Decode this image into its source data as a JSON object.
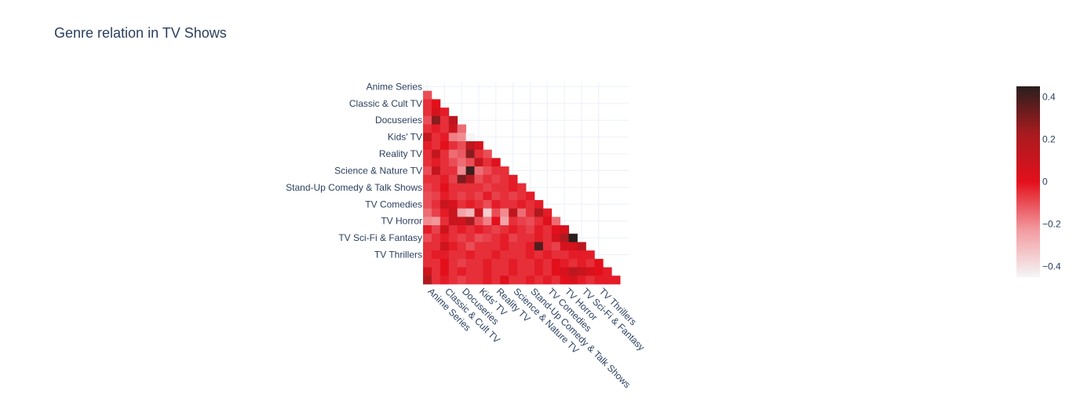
{
  "chart_data": {
    "type": "heatmap",
    "title": "Genre relation in TV Shows",
    "colorscale": [
      "#f5f5f5",
      "#f29a9f",
      "#e3101c",
      "#a81b1f",
      "#2a1e1e"
    ],
    "zrange": [
      -0.45,
      0.45
    ],
    "colorbar_ticks": [
      0.4,
      0.2,
      0,
      -0.2,
      -0.4
    ],
    "colorbar_tick_labels": [
      "0.4",
      "0.2",
      "0",
      "−0.2",
      "−0.4"
    ],
    "y_tick_labels": [
      "Anime Series",
      "Classic & Cult TV",
      "Docuseries",
      "Kids' TV",
      "Reality TV",
      "Science & Nature TV",
      "Stand-Up Comedy & Talk Shows",
      "TV Comedies",
      "TV Horror",
      "TV Sci-Fi & Fantasy",
      "TV Thrillers"
    ],
    "x_tick_labels": [
      "Anime Series",
      "Classic & Cult TV",
      "Docuseries",
      "Kids' TV",
      "Reality TV",
      "Science & Nature TV",
      "Stand-Up Comedy & Talk Shows",
      "TV Comedies",
      "TV Horror",
      "TV Sci-Fi & Fantasy",
      "TV Thrillers"
    ],
    "rows": [
      {
        "values": [
          -0.1
        ]
      },
      {
        "values": [
          -0.05,
          0.0
        ]
      },
      {
        "values": [
          -0.05,
          0.05,
          -0.02
        ]
      },
      {
        "values": [
          -0.1,
          0.28,
          -0.05,
          0.15
        ]
      },
      {
        "values": [
          -0.05,
          -0.02,
          -0.05,
          0.1,
          -0.15
        ]
      },
      {
        "values": [
          0.12,
          -0.05,
          -0.02,
          -0.18,
          -0.2,
          -0.45
        ]
      },
      {
        "values": [
          -0.02,
          -0.05,
          0.0,
          -0.05,
          -0.1,
          0.15,
          0.05
        ]
      },
      {
        "values": [
          -0.05,
          0.12,
          -0.05,
          -0.15,
          -0.12,
          0.28,
          -0.05,
          -0.1
        ]
      },
      {
        "values": [
          -0.05,
          -0.02,
          -0.05,
          -0.1,
          -0.15,
          -0.1,
          0.12,
          -0.05,
          0.02
        ]
      },
      {
        "values": [
          -0.1,
          0.12,
          -0.05,
          -0.05,
          -0.2,
          0.42,
          -0.15,
          -0.1,
          -0.05,
          -0.05
        ]
      },
      {
        "values": [
          -0.05,
          -0.05,
          -0.02,
          -0.08,
          0.3,
          0.18,
          -0.1,
          -0.05,
          -0.08,
          -0.05,
          -0.02
        ]
      },
      {
        "values": [
          -0.08,
          -0.05,
          0.0,
          -0.05,
          -0.05,
          -0.05,
          -0.05,
          -0.08,
          -0.05,
          -0.05,
          -0.02,
          -0.05
        ]
      },
      {
        "values": [
          -0.1,
          -0.08,
          -0.02,
          -0.05,
          -0.08,
          -0.05,
          -0.08,
          -0.02,
          -0.08,
          -0.05,
          -0.08,
          -0.05,
          -0.02
        ]
      },
      {
        "values": [
          -0.1,
          -0.05,
          0.1,
          0.05,
          -0.05,
          -0.02,
          -0.05,
          -0.1,
          -0.02,
          -0.05,
          -0.05,
          -0.02,
          -0.05,
          -0.02
        ]
      },
      {
        "values": [
          -0.15,
          -0.08,
          -0.02,
          0.1,
          -0.25,
          -0.3,
          0.1,
          -0.35,
          -0.1,
          -0.2,
          0.15,
          -0.15,
          -0.05,
          0.2,
          -0.02
        ]
      },
      {
        "values": [
          -0.2,
          -0.22,
          -0.05,
          0.1,
          0.08,
          0.22,
          -0.1,
          -0.18,
          0.0,
          -0.25,
          -0.05,
          -0.08,
          -0.1,
          -0.05,
          0.02,
          -0.15
        ]
      },
      {
        "values": [
          -0.02,
          -0.08,
          0.08,
          -0.05,
          -0.02,
          -0.05,
          -0.02,
          -0.05,
          -0.08,
          -0.05,
          -0.02,
          -0.05,
          -0.08,
          -0.02,
          -0.05,
          0.0,
          0.05
        ]
      },
      {
        "values": [
          -0.1,
          -0.05,
          -0.02,
          -0.05,
          -0.08,
          -0.05,
          -0.1,
          -0.08,
          -0.05,
          -0.02,
          -0.08,
          -0.05,
          -0.05,
          -0.02,
          -0.05,
          0.05,
          0.2,
          0.45
        ]
      },
      {
        "values": [
          -0.05,
          -0.05,
          0.08,
          -0.02,
          -0.05,
          -0.1,
          -0.05,
          -0.05,
          -0.05,
          -0.02,
          -0.05,
          -0.05,
          -0.02,
          0.38,
          -0.05,
          -0.08,
          0.05,
          0.05,
          0.15
        ]
      },
      {
        "values": [
          -0.05,
          -0.02,
          -0.02,
          -0.05,
          -0.05,
          -0.02,
          -0.05,
          -0.05,
          -0.02,
          -0.05,
          -0.05,
          -0.05,
          -0.02,
          -0.05,
          -0.02,
          -0.05,
          -0.05,
          -0.02,
          -0.02,
          -0.02
        ]
      },
      {
        "values": [
          -0.05,
          -0.05,
          0.0,
          -0.05,
          -0.08,
          -0.05,
          -0.05,
          -0.02,
          -0.05,
          -0.05,
          -0.02,
          -0.05,
          -0.05,
          -0.02,
          -0.05,
          0.0,
          -0.02,
          -0.05,
          -0.02,
          -0.05,
          0.0
        ]
      },
      {
        "values": [
          0.08,
          -0.05,
          0.0,
          -0.05,
          -0.02,
          -0.05,
          -0.05,
          -0.02,
          -0.05,
          -0.05,
          -0.02,
          -0.05,
          -0.05,
          -0.02,
          -0.05,
          0.0,
          0.05,
          0.15,
          0.1,
          0.05,
          0.0,
          -0.02
        ]
      },
      {
        "values": [
          0.2,
          -0.05,
          -0.02,
          -0.05,
          -0.08,
          -0.05,
          -0.05,
          -0.02,
          -0.05,
          0.02,
          -0.05,
          -0.05,
          -0.02,
          -0.05,
          -0.02,
          -0.05,
          0.0,
          0.05,
          -0.02,
          -0.05,
          -0.02,
          -0.02,
          -0.02
        ]
      }
    ]
  }
}
